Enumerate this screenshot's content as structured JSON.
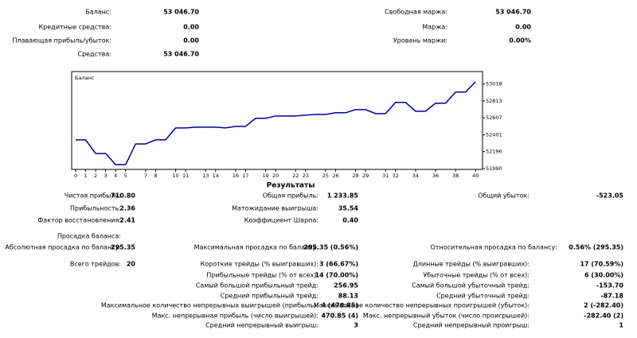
{
  "account": {
    "left": [
      {
        "label": "Баланс:",
        "value": "53 046.70"
      },
      {
        "label": "Кредитные средства:",
        "value": "0.00"
      },
      {
        "label": "Плавающая прибыль/убыток:",
        "value": "0.00"
      },
      {
        "label": "Средства:",
        "value": "53 046.70"
      }
    ],
    "right": [
      {
        "label": "Свободная маржа:",
        "value": "53 046.70"
      },
      {
        "label": "Маржа:",
        "value": "0.00"
      },
      {
        "label": "Уровень маржи:",
        "value": "0.00%"
      }
    ]
  },
  "chart_data": {
    "type": "line",
    "title": "Баланс",
    "color": "#000099",
    "x": [
      0,
      1,
      2,
      3,
      4,
      5,
      6,
      7,
      8,
      9,
      10,
      11,
      12,
      13,
      14,
      15,
      16,
      17,
      18,
      19,
      20,
      21,
      22,
      23,
      24,
      25,
      26,
      27,
      28,
      29,
      30,
      31,
      32,
      33,
      34,
      35,
      36,
      37,
      38,
      39,
      40
    ],
    "values": [
      52339,
      52339,
      52174,
      52174,
      52038,
      52038,
      52290,
      52290,
      52339,
      52339,
      52484,
      52484,
      52494,
      52494,
      52494,
      52484,
      52504,
      52504,
      52601,
      52601,
      52630,
      52630,
      52630,
      52640,
      52649,
      52649,
      52669,
      52669,
      52708,
      52708,
      52659,
      52659,
      52795,
      52795,
      52688,
      52688,
      52785,
      52785,
      52921,
      52921,
      53047
    ],
    "xlim": [
      -0.4,
      40.7
    ],
    "xticks": [
      0,
      1,
      2,
      3,
      4,
      5,
      7,
      8,
      10,
      11,
      13,
      14,
      16,
      17,
      19,
      20,
      22,
      23,
      25,
      26,
      28,
      29,
      31,
      32,
      34,
      36,
      38,
      40
    ],
    "ylim": [
      51980,
      53170
    ],
    "yticks": [
      51990,
      52196,
      52401,
      52607,
      52813,
      53018
    ]
  },
  "results": {
    "title": "Результаты",
    "rows": [
      [
        {
          "label": "Чистая прибыль:",
          "value": "710.80"
        },
        {
          "label": "Общая прибыль:",
          "value": "1 233.85"
        },
        {
          "label": "Общий убыток:",
          "value": "-523.05"
        }
      ],
      [
        {
          "label": "Прибыльность:",
          "value": "2.36"
        },
        {
          "label": "Матожидание выигрыша:",
          "value": "35.54"
        },
        null
      ],
      [
        {
          "label": "Фактор восстановления:",
          "value": "2.41"
        },
        {
          "label": "Коэффициент Шарпа:",
          "value": "0.40"
        },
        null
      ],
      [
        {
          "label": "Просадка баланса:"
        },
        null,
        null
      ],
      [
        {
          "label": "Абсолютная просадка по балансу:",
          "value": "295.35"
        },
        {
          "label": "Максимальная просадка по балансу:",
          "value": "295.35 (0.56%)"
        },
        {
          "label": "Относительная просадка по балансу:",
          "value": "0.56% (295.35)"
        }
      ],
      [
        {
          "label": "Всего трейдов:",
          "value": "20"
        },
        {
          "label": "Короткие трейды (% выигравших):",
          "value": "3 (66.67%)"
        },
        {
          "label": "Длинные трейды (% выигравших):",
          "value": "17 (70.59%)"
        }
      ],
      [
        null,
        {
          "label": "Прибыльные трейды (% от всех):",
          "value": "14 (70.00%)"
        },
        {
          "label": "Убыточные трейды (% от всех):",
          "value": "6 (30.00%)"
        }
      ],
      [
        null,
        {
          "label": "Самый большой прибыльный трейд:",
          "value": "256.95"
        },
        {
          "label": "Самый большой убыточный трейд:",
          "value": "-153.70"
        }
      ],
      [
        null,
        {
          "label": "Средний прибыльный трейд:",
          "value": "88.13"
        },
        {
          "label": "Средний убыточный трейд:",
          "value": "-87.18"
        }
      ],
      [
        null,
        {
          "label": "Максимальное количество непрерывных выигрышей (прибыль):",
          "value": "4 (470.85)"
        },
        {
          "label": "Максимальное количество непрерывных проигрышей (убыток):",
          "value": "2 (-282.40)"
        }
      ],
      [
        null,
        {
          "label": "Макс. непрерывная прибыль (число выигрышей):",
          "value": "470.85 (4)"
        },
        {
          "label": "Макс. непрерывный убыток (число проигрышей):",
          "value": "-282.40 (2)"
        }
      ],
      [
        null,
        {
          "label": "Средний непрерывный выигрыш:",
          "value": "3"
        },
        {
          "label": "Средний непрерывный проигрыш:",
          "value": "1"
        }
      ]
    ]
  }
}
